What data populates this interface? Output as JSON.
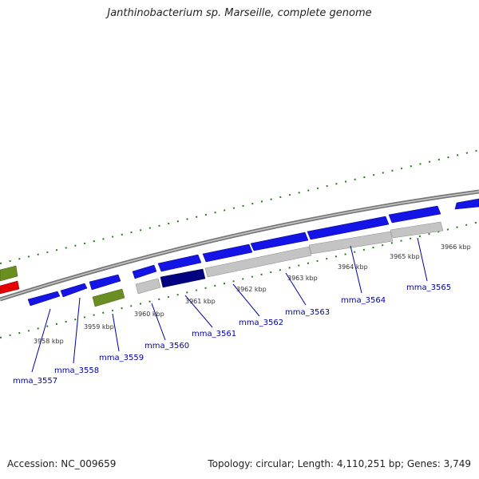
{
  "title": "Janthinobacterium sp. Marseille, complete genome",
  "footer": {
    "accession": "Accession: NC_009659",
    "summary": "Topology: circular; Length: 4,110,251 bp; Genes: 3,749"
  },
  "colors": {
    "forward_cds": "#1414e6",
    "reverse_cds": "#c4c4c4",
    "reverse_green": "#6b8e23",
    "highlight_dark": "#000080",
    "highlight_red": "#e60000",
    "backbone": "#888888",
    "tick": "#2a7a1f",
    "gene_label": "#0000a0"
  },
  "kbp_labels": [
    "3958 kbp",
    "3959 kbp",
    "3960 kbp",
    "3961 kbp",
    "3962 kbp",
    "3963 kbp",
    "3964 kbp",
    "3965 kbp",
    "3966 kbp"
  ],
  "gene_labels": [
    "mma_3557",
    "mma_3558",
    "mma_3559",
    "mma_3560",
    "mma_3561",
    "mma_3562",
    "mma_3563",
    "mma_3564",
    "mma_3565"
  ]
}
